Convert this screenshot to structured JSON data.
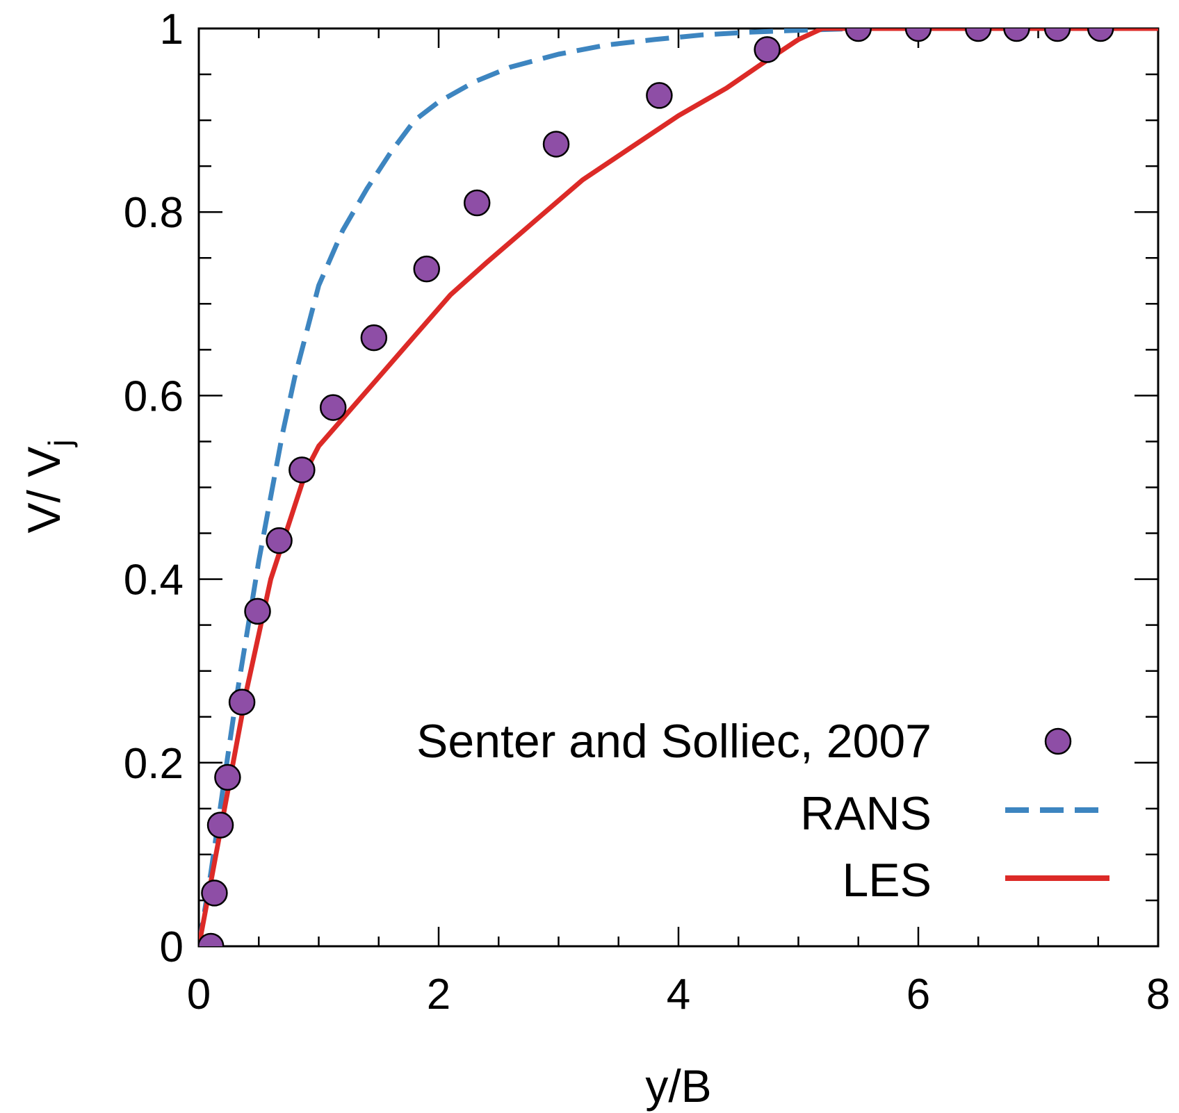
{
  "chart_data": {
    "type": "line",
    "title": "",
    "xlabel": "y/B",
    "ylabel_main": "V/ V",
    "ylabel_sub": "j",
    "xlim": [
      0,
      8
    ],
    "ylim": [
      0,
      1
    ],
    "x_ticks": [
      0,
      2,
      4,
      6,
      8
    ],
    "x_tick_labels": [
      "0",
      "2",
      "4",
      "6",
      "8"
    ],
    "x_minor_step": 0.5,
    "y_ticks": [
      0,
      0.2,
      0.4,
      0.6,
      0.8,
      1
    ],
    "y_tick_labels": [
      "0",
      "0.2",
      "0.4",
      "0.6",
      "0.8",
      "1"
    ],
    "y_minor_step": 0.05,
    "grid": false,
    "legend_position": "bottom-right",
    "series": [
      {
        "name": "Senter and Solliec, 2007",
        "kind": "scatter",
        "color": "#8e4ea6",
        "x": [
          0.1,
          0.13,
          0.18,
          0.24,
          0.36,
          0.49,
          0.67,
          0.86,
          1.12,
          1.46,
          1.9,
          2.32,
          2.98,
          3.84,
          4.74,
          5.5,
          6.0,
          6.5,
          6.82,
          7.16,
          7.52
        ],
        "y": [
          0.0,
          0.058,
          0.132,
          0.184,
          0.266,
          0.365,
          0.442,
          0.519,
          0.587,
          0.663,
          0.738,
          0.81,
          0.874,
          0.927,
          0.977,
          1.0,
          1.0,
          1.0,
          1.0,
          1.0,
          1.0
        ]
      },
      {
        "name": "RANS",
        "kind": "line",
        "style": "dashed",
        "color": "#3d85c0",
        "x": [
          0.0,
          0.1,
          0.2,
          0.3,
          0.4,
          0.5,
          0.6,
          0.7,
          0.8,
          0.9,
          1.0,
          1.2,
          1.4,
          1.6,
          1.8,
          2.0,
          2.3,
          2.6,
          3.0,
          3.4,
          3.8,
          4.2,
          4.6,
          5.0,
          5.5,
          6.0,
          7.0,
          8.0
        ],
        "y": [
          0.0,
          0.08,
          0.17,
          0.26,
          0.34,
          0.42,
          0.49,
          0.56,
          0.62,
          0.67,
          0.72,
          0.78,
          0.825,
          0.865,
          0.9,
          0.92,
          0.942,
          0.958,
          0.972,
          0.982,
          0.988,
          0.993,
          0.996,
          0.998,
          1.0,
          1.0,
          1.0,
          1.0
        ]
      },
      {
        "name": "LES",
        "kind": "line",
        "style": "solid",
        "color": "#dc2a27",
        "x": [
          0.0,
          0.1,
          0.2,
          0.3,
          0.4,
          0.5,
          0.6,
          0.7,
          0.8,
          0.9,
          1.0,
          1.2,
          1.5,
          1.8,
          2.1,
          2.4,
          2.8,
          3.2,
          3.6,
          4.0,
          4.4,
          4.7,
          5.0,
          5.2,
          5.5,
          6.0,
          7.0,
          8.0
        ],
        "y": [
          0.0,
          0.07,
          0.14,
          0.21,
          0.28,
          0.34,
          0.4,
          0.44,
          0.48,
          0.52,
          0.545,
          0.575,
          0.62,
          0.665,
          0.71,
          0.745,
          0.79,
          0.835,
          0.87,
          0.905,
          0.935,
          0.962,
          0.988,
          1.0,
          1.0,
          1.0,
          1.0,
          1.0
        ]
      }
    ]
  }
}
